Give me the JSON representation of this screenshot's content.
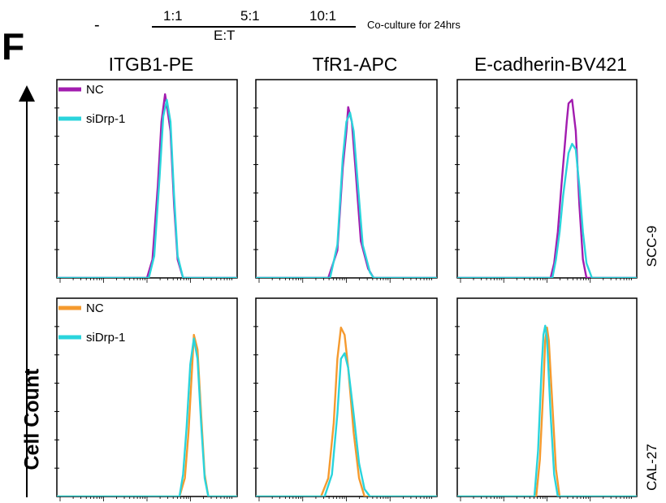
{
  "figure": {
    "panel_letter": "F",
    "top": {
      "dash": "-",
      "ratios": [
        "1:1",
        "5:1",
        "10:1"
      ],
      "et_label": "E:T",
      "coculture_label": "Co-culture for 24hrs"
    },
    "y_axis_title": "Cell Count",
    "columns": [
      "ITGB1-PE",
      "TfR1-APC",
      "E-cadherin-BV421"
    ],
    "rows": [
      "SCC-9",
      "CAL-27"
    ]
  },
  "colors": {
    "nc_row1": "#a21caf",
    "nc_row2": "#f59a2e",
    "sidrp1": "#2ad4dc",
    "axis": "#000000"
  },
  "chart_data": [
    {
      "type": "area",
      "row": "SCC-9",
      "column": "ITGB1-PE",
      "xlabel": "",
      "ylabel": "Cell Count",
      "xlim": [
        0,
        100
      ],
      "ylim": [
        0,
        100
      ],
      "legend": [
        "NC",
        "siDrp-1"
      ],
      "legend_position": "top-left",
      "series": [
        {
          "name": "NC",
          "color_key": "nc_row1",
          "values": [
            [
              0,
              0
            ],
            [
              50,
              0
            ],
            [
              53,
              10
            ],
            [
              56,
              50
            ],
            [
              58,
              85
            ],
            [
              60,
              100
            ],
            [
              61,
              94
            ],
            [
              63,
              80
            ],
            [
              65,
              40
            ],
            [
              67,
              10
            ],
            [
              70,
              0
            ],
            [
              100,
              0
            ]
          ]
        },
        {
          "name": "siDrp-1",
          "color_key": "sidrp1",
          "values": [
            [
              0,
              0
            ],
            [
              51,
              0
            ],
            [
              54,
              12
            ],
            [
              57,
              55
            ],
            [
              59,
              88
            ],
            [
              61,
              97
            ],
            [
              63,
              85
            ],
            [
              65,
              45
            ],
            [
              67,
              12
            ],
            [
              70,
              0
            ],
            [
              100,
              0
            ]
          ]
        }
      ]
    },
    {
      "type": "area",
      "row": "SCC-9",
      "column": "TfR1-APC",
      "xlabel": "",
      "ylabel": "",
      "xlim": [
        0,
        100
      ],
      "ylim": [
        0,
        100
      ],
      "series": [
        {
          "name": "NC",
          "color_key": "nc_row1",
          "values": [
            [
              0,
              0
            ],
            [
              40,
              0
            ],
            [
              45,
              15
            ],
            [
              48,
              60
            ],
            [
              50,
              80
            ],
            [
              51,
              93
            ],
            [
              53,
              85
            ],
            [
              55,
              60
            ],
            [
              58,
              20
            ],
            [
              62,
              5
            ],
            [
              65,
              0
            ],
            [
              100,
              0
            ]
          ]
        },
        {
          "name": "siDrp-1",
          "color_key": "sidrp1",
          "values": [
            [
              0,
              0
            ],
            [
              41,
              0
            ],
            [
              45,
              18
            ],
            [
              48,
              65
            ],
            [
              50,
              85
            ],
            [
              52,
              90
            ],
            [
              54,
              80
            ],
            [
              56,
              55
            ],
            [
              59,
              18
            ],
            [
              63,
              3
            ],
            [
              65,
              0
            ],
            [
              100,
              0
            ]
          ]
        }
      ]
    },
    {
      "type": "area",
      "row": "SCC-9",
      "column": "E-cadherin-BV421",
      "xlabel": "",
      "ylabel": "",
      "xlim": [
        0,
        100
      ],
      "ylim": [
        0,
        100
      ],
      "series": [
        {
          "name": "NC",
          "color_key": "nc_row1",
          "values": [
            [
              0,
              0
            ],
            [
              52,
              0
            ],
            [
              54,
              8
            ],
            [
              56,
              25
            ],
            [
              58,
              50
            ],
            [
              61,
              85
            ],
            [
              62,
              95
            ],
            [
              64,
              97
            ],
            [
              66,
              80
            ],
            [
              68,
              40
            ],
            [
              70,
              10
            ],
            [
              72,
              0
            ],
            [
              100,
              0
            ]
          ]
        },
        {
          "name": "siDrp-1",
          "color_key": "sidrp1",
          "values": [
            [
              0,
              0
            ],
            [
              53,
              0
            ],
            [
              55,
              10
            ],
            [
              57,
              25
            ],
            [
              59,
              45
            ],
            [
              62,
              68
            ],
            [
              64,
              73
            ],
            [
              66,
              70
            ],
            [
              68,
              50
            ],
            [
              70,
              25
            ],
            [
              72,
              8
            ],
            [
              75,
              0
            ],
            [
              100,
              0
            ]
          ]
        }
      ]
    },
    {
      "type": "area",
      "row": "CAL-27",
      "column": "ITGB1-PE",
      "xlabel": "",
      "ylabel": "Cell Count",
      "xlim": [
        0,
        100
      ],
      "ylim": [
        0,
        100
      ],
      "legend": [
        "NC",
        "siDrp-1"
      ],
      "legend_position": "top-left",
      "series": [
        {
          "name": "NC",
          "color_key": "nc_row2",
          "values": [
            [
              0,
              0
            ],
            [
              68,
              0
            ],
            [
              71,
              10
            ],
            [
              73,
              35
            ],
            [
              75,
              70
            ],
            [
              76,
              88
            ],
            [
              78,
              80
            ],
            [
              80,
              45
            ],
            [
              82,
              12
            ],
            [
              84,
              0
            ],
            [
              100,
              0
            ]
          ]
        },
        {
          "name": "siDrp-1",
          "color_key": "sidrp1",
          "values": [
            [
              0,
              0
            ],
            [
              68,
              0
            ],
            [
              70,
              12
            ],
            [
              72,
              38
            ],
            [
              74,
              72
            ],
            [
              76,
              86
            ],
            [
              78,
              75
            ],
            [
              80,
              40
            ],
            [
              82,
              10
            ],
            [
              84,
              0
            ],
            [
              100,
              0
            ]
          ]
        }
      ]
    },
    {
      "type": "area",
      "row": "CAL-27",
      "column": "TfR1-APC",
      "xlabel": "",
      "ylabel": "",
      "xlim": [
        0,
        100
      ],
      "ylim": [
        0,
        100
      ],
      "series": [
        {
          "name": "NC",
          "color_key": "nc_row2",
          "values": [
            [
              0,
              0
            ],
            [
              36,
              0
            ],
            [
              40,
              10
            ],
            [
              43,
              40
            ],
            [
              45,
              75
            ],
            [
              47,
              92
            ],
            [
              49,
              88
            ],
            [
              51,
              70
            ],
            [
              54,
              35
            ],
            [
              57,
              10
            ],
            [
              60,
              0
            ],
            [
              100,
              0
            ]
          ]
        },
        {
          "name": "siDrp-1",
          "color_key": "sidrp1",
          "values": [
            [
              0,
              0
            ],
            [
              38,
              0
            ],
            [
              42,
              12
            ],
            [
              45,
              45
            ],
            [
              47,
              75
            ],
            [
              49,
              78
            ],
            [
              51,
              70
            ],
            [
              54,
              45
            ],
            [
              57,
              18
            ],
            [
              60,
              4
            ],
            [
              63,
              0
            ],
            [
              100,
              0
            ]
          ]
        }
      ]
    },
    {
      "type": "area",
      "row": "CAL-27",
      "column": "E-cadherin-BV421",
      "xlabel": "",
      "ylabel": "",
      "xlim": [
        0,
        100
      ],
      "ylim": [
        0,
        100
      ],
      "series": [
        {
          "name": "NC",
          "color_key": "nc_row2",
          "values": [
            [
              0,
              0
            ],
            [
              44,
              0
            ],
            [
              46,
              20
            ],
            [
              48,
              60
            ],
            [
              49,
              85
            ],
            [
              50,
              92
            ],
            [
              51,
              85
            ],
            [
              53,
              50
            ],
            [
              55,
              15
            ],
            [
              57,
              0
            ],
            [
              100,
              0
            ]
          ]
        },
        {
          "name": "siDrp-1",
          "color_key": "sidrp1",
          "values": [
            [
              0,
              0
            ],
            [
              43,
              0
            ],
            [
              45,
              25
            ],
            [
              47,
              70
            ],
            [
              48,
              88
            ],
            [
              49,
              93
            ],
            [
              50,
              86
            ],
            [
              52,
              45
            ],
            [
              54,
              12
            ],
            [
              56,
              0
            ],
            [
              100,
              0
            ]
          ]
        }
      ]
    }
  ]
}
